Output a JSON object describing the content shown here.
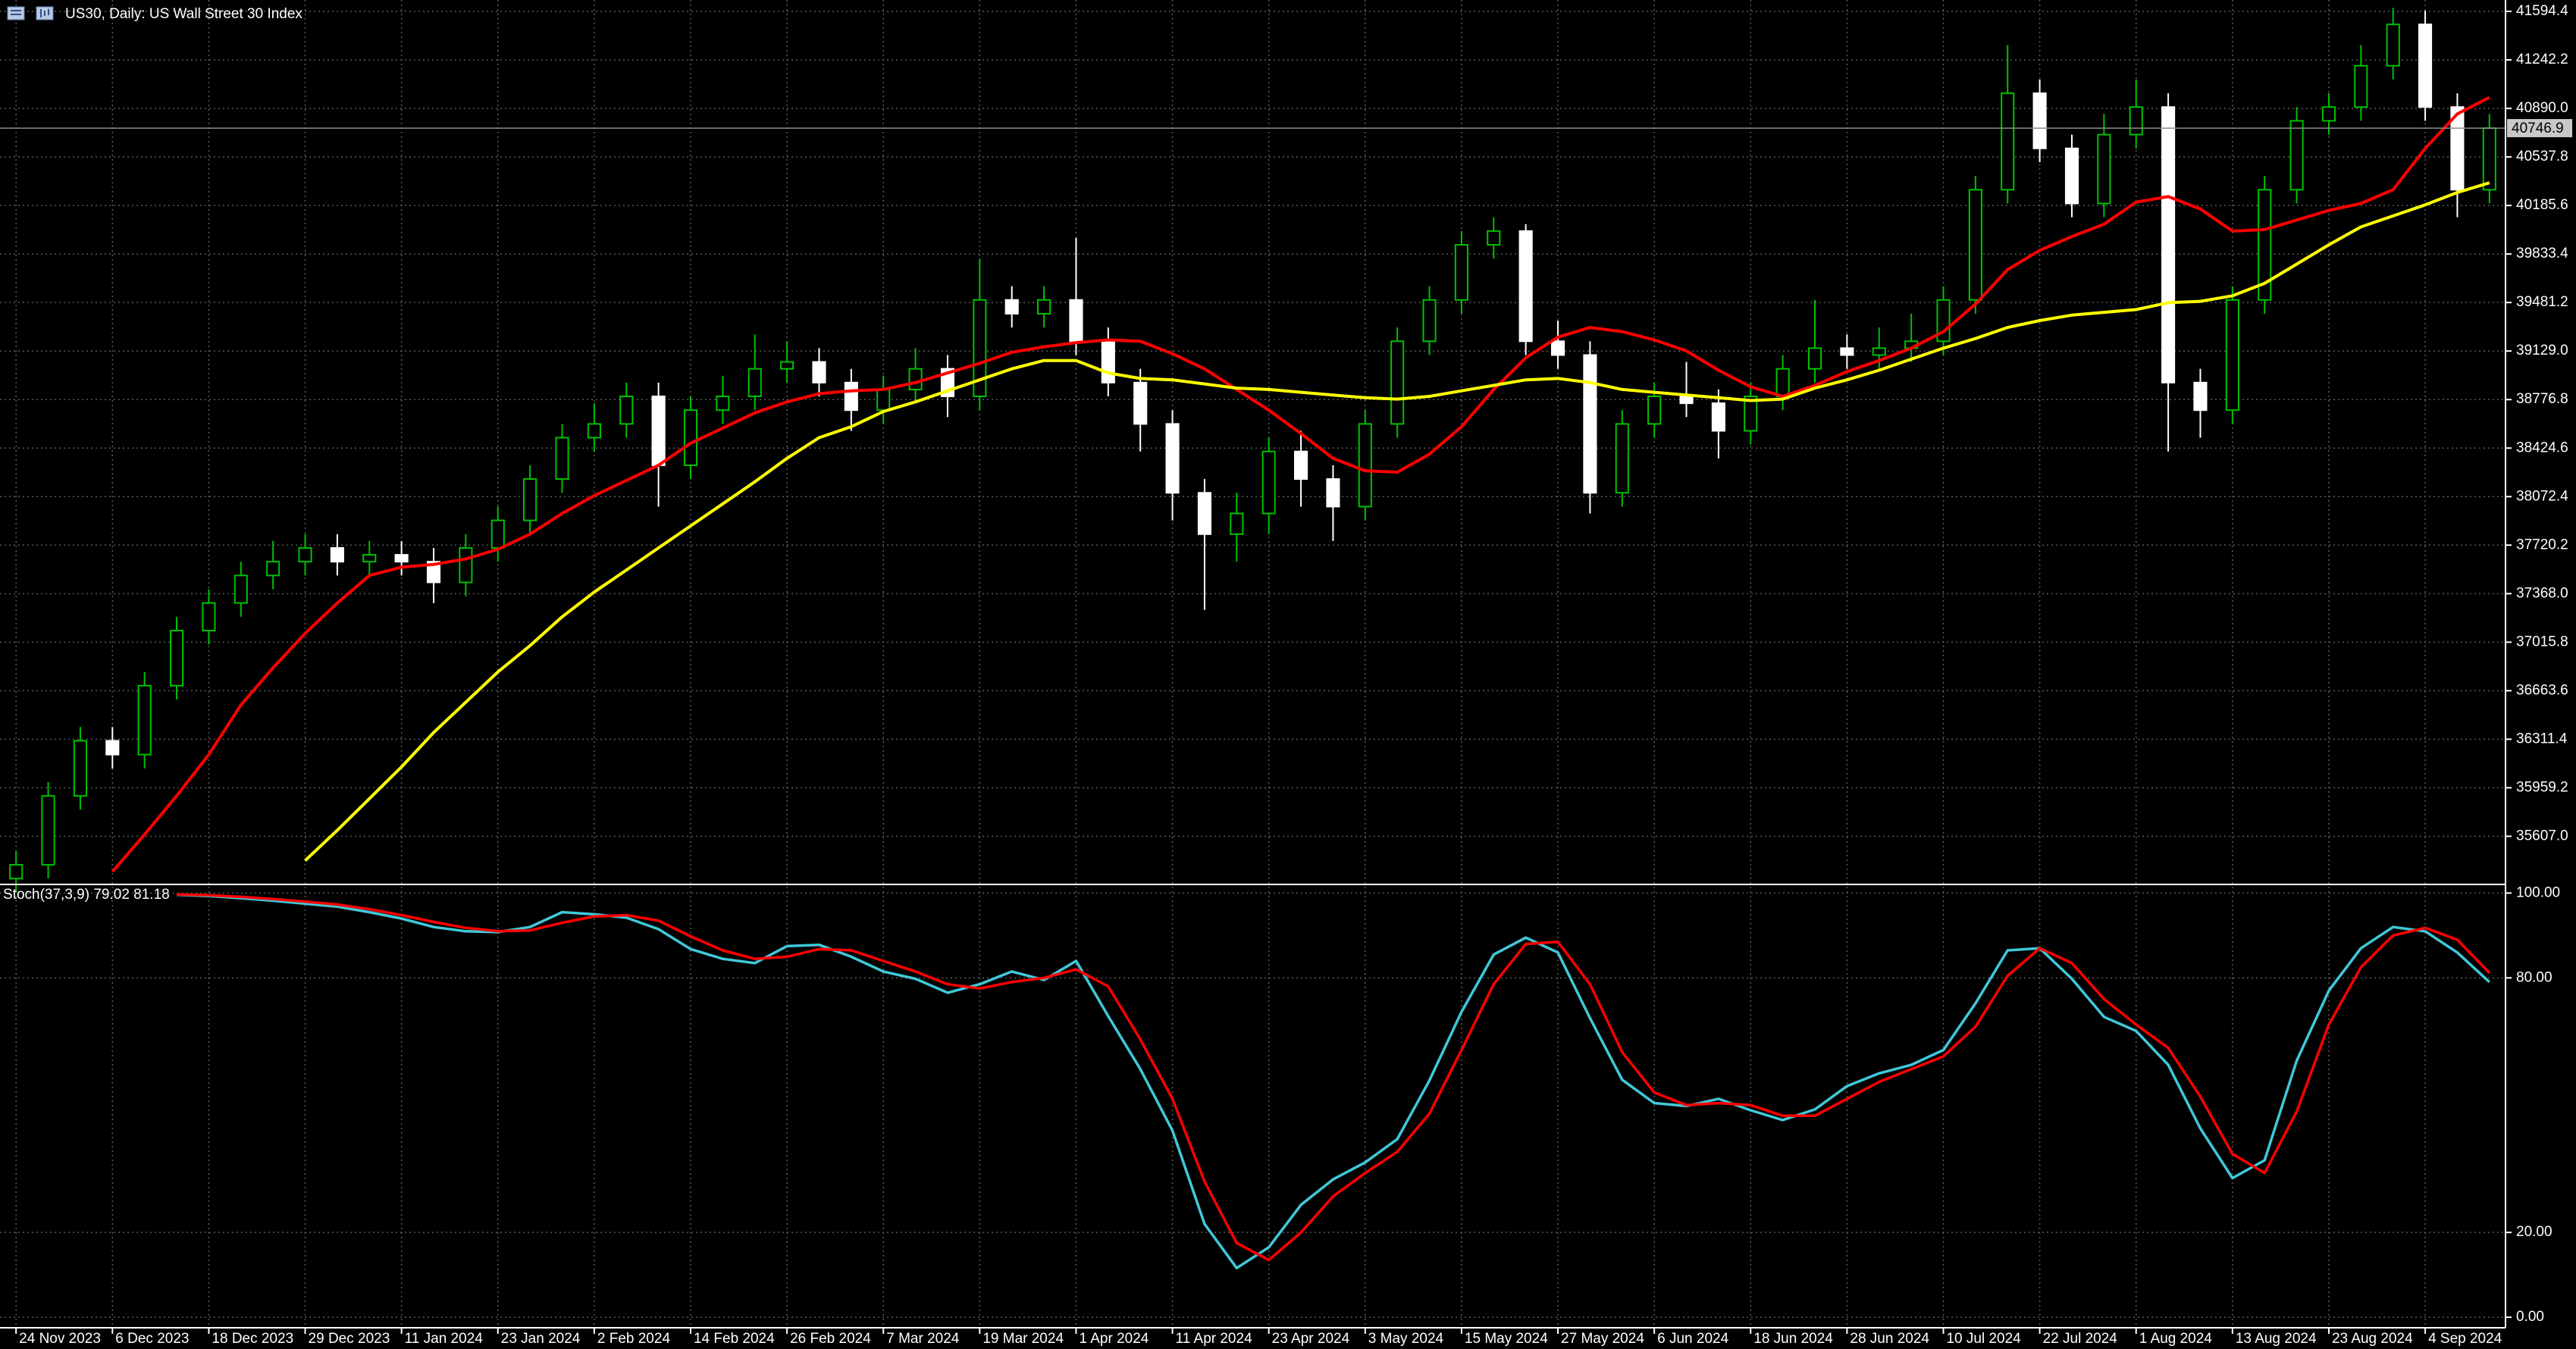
{
  "chart_data": [
    {
      "type": "candlestick",
      "title": "US30, Daily:  US Wall Street 30 Index",
      "up_color": "#00c000",
      "down_color": "#ffffff",
      "xlim": [
        -0.5,
        77.5
      ],
      "ylim": [
        35263,
        41677
      ],
      "yticks": [
        41594.4,
        41242.2,
        {
          "value": 40890,
          "label": "40890.0"
        },
        40537.8,
        40185.6,
        39833.4,
        39481.2,
        {
          "value": 39129,
          "label": "39129.0"
        },
        38776.8,
        38424.6,
        38072.4,
        37720.2,
        {
          "value": 37368,
          "label": "37368.0"
        },
        37015.8,
        36663.6,
        36311.4,
        35959.2,
        {
          "value": 35607,
          "label": "35607.0"
        }
      ],
      "grid": true,
      "open": [
        35300,
        35400,
        35900,
        36300,
        36200,
        36700,
        37100,
        37300,
        37500,
        37600,
        37700,
        37600,
        37650,
        37600,
        37450,
        37700,
        37900,
        38200,
        38500,
        38600,
        38800,
        38300,
        38700,
        38800,
        39000,
        39050,
        38900,
        38700,
        38850,
        39000,
        38800,
        39500,
        39400,
        39500,
        39200,
        38900,
        38600,
        38100,
        37800,
        37950,
        38400,
        38200,
        38000,
        38600,
        39200,
        39500,
        39900,
        40000,
        39200,
        39100,
        38100,
        38600,
        38800,
        38750,
        38550,
        38800,
        39000,
        39150,
        39100,
        39150,
        39200,
        39500,
        40300,
        41000,
        40600,
        40200,
        40700,
        40900,
        38900,
        38700,
        39500,
        40300,
        40800,
        40900,
        41200,
        41500,
        40900,
        40300
      ],
      "high": [
        35500,
        36000,
        36400,
        36400,
        36800,
        37200,
        37400,
        37600,
        37750,
        37800,
        37800,
        37750,
        37750,
        37700,
        37800,
        38000,
        38300,
        38600,
        38750,
        38900,
        38900,
        38800,
        38950,
        39250,
        39200,
        39150,
        39000,
        38950,
        39150,
        39100,
        39800,
        39600,
        39600,
        39950,
        39300,
        39000,
        38700,
        38200,
        38100,
        38500,
        38550,
        38300,
        38700,
        39300,
        39600,
        40000,
        40100,
        40050,
        39350,
        39200,
        38700,
        38900,
        39050,
        38850,
        38900,
        39100,
        39500,
        39250,
        39300,
        39400,
        39600,
        40400,
        41350,
        41100,
        40700,
        40850,
        41100,
        41000,
        39000,
        39600,
        40400,
        40900,
        41000,
        41350,
        41620,
        41600,
        41000,
        40850
      ],
      "low": [
        35200,
        35300,
        35800,
        36100,
        36100,
        36600,
        37000,
        37200,
        37400,
        37500,
        37500,
        37500,
        37500,
        37300,
        37350,
        37600,
        37800,
        38100,
        38400,
        38500,
        38000,
        38200,
        38600,
        38700,
        38900,
        38800,
        38550,
        38600,
        38750,
        38650,
        38700,
        39300,
        39300,
        39100,
        38800,
        38400,
        37900,
        37250,
        37600,
        37800,
        38000,
        37750,
        37900,
        38500,
        39100,
        39400,
        39800,
        39100,
        39000,
        37950,
        38000,
        38500,
        38650,
        38350,
        38450,
        38700,
        38900,
        39000,
        39000,
        39050,
        39100,
        39400,
        40200,
        40500,
        40100,
        40100,
        40600,
        38400,
        38500,
        38600,
        39400,
        40200,
        40700,
        40800,
        41100,
        40800,
        40100,
        40200
      ],
      "close": [
        35400,
        35900,
        36300,
        36200,
        36700,
        37100,
        37300,
        37500,
        37600,
        37700,
        37600,
        37650,
        37600,
        37450,
        37700,
        37900,
        38200,
        38500,
        38600,
        38800,
        38300,
        38700,
        38800,
        39000,
        39050,
        38900,
        38700,
        38850,
        39000,
        38800,
        39500,
        39400,
        39500,
        39200,
        38900,
        38600,
        38100,
        37800,
        37950,
        38400,
        38200,
        38000,
        38600,
        39200,
        39500,
        39900,
        40000,
        39200,
        39100,
        38100,
        38600,
        38800,
        38750,
        38550,
        38800,
        39000,
        39150,
        39100,
        39150,
        39200,
        39500,
        40300,
        41000,
        40600,
        40200,
        40700,
        40900,
        38900,
        38700,
        39500,
        40300,
        40800,
        40900,
        41200,
        41500,
        40900,
        40300,
        40746.9
      ],
      "lines": [
        {
          "color": "#ff0000",
          "values": [
            null,
            null,
            null,
            35350,
            35620,
            35900,
            36200,
            36560,
            36830,
            37080,
            37300,
            37500,
            37560,
            37580,
            37620,
            37690,
            37800,
            37950,
            38080,
            38190,
            38300,
            38460,
            38570,
            38680,
            38760,
            38820,
            38840,
            38850,
            38900,
            38970,
            39040,
            39120,
            39160,
            39190,
            39210,
            39200,
            39110,
            39000,
            38850,
            38700,
            38530,
            38350,
            38260,
            38250,
            38380,
            38580,
            38850,
            39080,
            39230,
            39300,
            39270,
            39210,
            39130,
            38990,
            38870,
            38800,
            38880,
            38980,
            39060,
            39150,
            39270,
            39470,
            39720,
            39860,
            39960,
            40050,
            40210,
            40250,
            40160,
            40000,
            40010,
            40080,
            40150,
            40200,
            40300,
            40600,
            40850,
            40970
          ]
        },
        {
          "color": "#ffff00",
          "values": [
            null,
            null,
            null,
            null,
            null,
            null,
            null,
            null,
            null,
            35430,
            35650,
            35880,
            36110,
            36360,
            36580,
            36800,
            36990,
            37200,
            37380,
            37540,
            37700,
            37860,
            38020,
            38180,
            38350,
            38500,
            38580,
            38690,
            38760,
            38840,
            38920,
            39000,
            39060,
            39060,
            38970,
            38930,
            38920,
            38890,
            38860,
            38850,
            38830,
            38810,
            38790,
            38780,
            38800,
            38840,
            38880,
            38920,
            38930,
            38900,
            38850,
            38830,
            38810,
            38790,
            38770,
            38780,
            38860,
            38920,
            38990,
            39070,
            39150,
            39220,
            39300,
            39350,
            39390,
            39410,
            39430,
            39480,
            39490,
            39530,
            39620,
            39760,
            39900,
            40030,
            40110,
            40190,
            40280,
            40350
          ]
        }
      ]
    },
    {
      "type": "line",
      "title": "Stoch(37,3,9) 79.02 81.18",
      "xlim": [
        -0.5,
        77.5
      ],
      "ylim": [
        -2.3,
        101.5
      ],
      "yticks": [
        {
          "value": 100,
          "label": "100.00"
        },
        {
          "value": 80,
          "label": "80.00"
        },
        {
          "value": 20,
          "label": "20.00"
        },
        {
          "value": 0,
          "label": "0.00"
        }
      ],
      "xticks": [
        {
          "value": 0,
          "label": "24 Nov 2023"
        },
        {
          "value": 3,
          "label": "6 Dec 2023"
        },
        {
          "value": 6,
          "label": "18 Dec 2023"
        },
        {
          "value": 9,
          "label": "29 Dec 2023"
        },
        {
          "value": 12,
          "label": "11 Jan 2024"
        },
        {
          "value": 15,
          "label": "23 Jan 2024"
        },
        {
          "value": 18,
          "label": "2 Feb 2024"
        },
        {
          "value": 21,
          "label": "14 Feb 2024"
        },
        {
          "value": 24,
          "label": "26 Feb 2024"
        },
        {
          "value": 27,
          "label": "7 Mar 2024"
        },
        {
          "value": 30,
          "label": "19 Mar 2024"
        },
        {
          "value": 33,
          "label": "1 Apr 2024"
        },
        {
          "value": 36,
          "label": "11 Apr 2024"
        },
        {
          "value": 39,
          "label": "23 Apr 2024"
        },
        {
          "value": 42,
          "label": "3 May 2024"
        },
        {
          "value": 45,
          "label": "15 May 2024"
        },
        {
          "value": 48,
          "label": "27 May 2024"
        },
        {
          "value": 51,
          "label": "6 Jun 2024"
        },
        {
          "value": 54,
          "label": "18 Jun 2024"
        },
        {
          "value": 57,
          "label": "28 Jun 2024"
        },
        {
          "value": 60,
          "label": "10 Jul 2024"
        },
        {
          "value": 63,
          "label": "22 Jul 2024"
        },
        {
          "value": 66,
          "label": "1 Aug 2024"
        },
        {
          "value": 69,
          "label": "13 Aug 2024"
        },
        {
          "value": 72,
          "label": "23 Aug 2024"
        },
        {
          "value": 75,
          "label": "4 Sep 2024"
        }
      ],
      "grid": true,
      "series": [
        {
          "color": "#40c8d8",
          "values": [
            null,
            null,
            null,
            null,
            null,
            99.6,
            99.3,
            98.8,
            98.2,
            97.5,
            96.8,
            95.5,
            94.0,
            92.0,
            91.0,
            90.8,
            92.0,
            95.5,
            95.0,
            94.2,
            91.5,
            86.8,
            84.5,
            83.5,
            87.5,
            87.8,
            85.0,
            81.5,
            79.8,
            76.5,
            78.5,
            81.5,
            79.5,
            84.0,
            71.0,
            58.5,
            44.0,
            22.0,
            11.6,
            16.5,
            26.5,
            32.5,
            36.5,
            42.0,
            55.8,
            72.0,
            85.5,
            89.5,
            86.0,
            70.5,
            56.0,
            50.5,
            49.8,
            51.5,
            48.8,
            46.5,
            49.0,
            54.5,
            57.5,
            59.5,
            63.0,
            74.0,
            86.5,
            87.0,
            79.8,
            70.8,
            67.5,
            59.5,
            44.5,
            32.8,
            37.0,
            60.5,
            77.0,
            87.0,
            92.0,
            91.0,
            86.0,
            79.02
          ]
        },
        {
          "color": "#ff0000",
          "values": [
            null,
            null,
            null,
            null,
            null,
            99.7,
            99.5,
            99.1,
            98.6,
            98.0,
            97.3,
            96.2,
            94.8,
            93.2,
            91.8,
            91.0,
            91.2,
            93.0,
            94.5,
            94.8,
            93.5,
            89.8,
            86.5,
            84.5,
            85.0,
            86.8,
            86.5,
            84.0,
            81.5,
            78.5,
            77.5,
            79.0,
            80.0,
            82.0,
            78.0,
            65.5,
            51.5,
            32.0,
            17.5,
            13.5,
            20.0,
            28.5,
            34.0,
            39.0,
            48.0,
            63.0,
            78.5,
            88.0,
            88.5,
            78.5,
            62.5,
            53.0,
            50.0,
            50.5,
            50.0,
            47.5,
            47.5,
            51.5,
            55.5,
            58.5,
            61.5,
            68.5,
            80.5,
            87.0,
            83.5,
            75.0,
            69.0,
            63.5,
            52.0,
            38.5,
            34.0,
            48.5,
            69.0,
            82.5,
            90.0,
            91.8,
            89.0,
            81.18
          ]
        }
      ]
    }
  ]
}
